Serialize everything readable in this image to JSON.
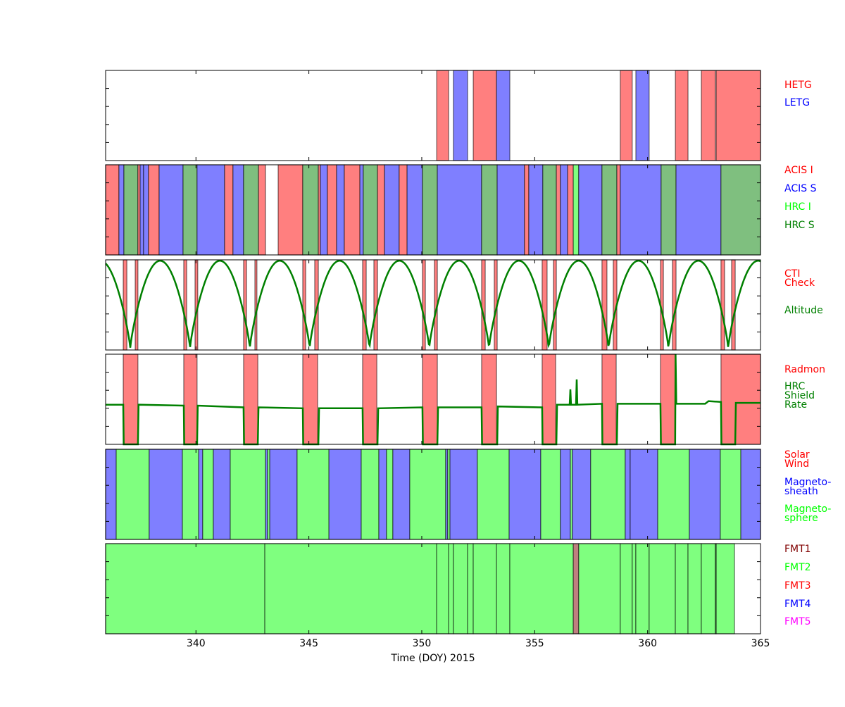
{
  "chart_data": {
    "type": "timeline-bands",
    "xlabel": "Time (DOY) 2015",
    "xlim": [
      336,
      365
    ],
    "xticks": [
      340,
      345,
      350,
      355,
      360,
      365
    ],
    "grid": false,
    "legend_placement": "right of each panel",
    "colors": {
      "HETG": "#ff7f7f",
      "LETG": "#7f7fff",
      "ACIS I": "#ff7f7f",
      "ACIS S": "#7f7fff",
      "HRC I": "#7fff7f",
      "HRC S": "#7fbf7f",
      "CTI Check": "#ff7f7f",
      "Radmon": "#ff7f7f",
      "Solar Wind": "#ff7f7f",
      "Magnetosheath": "#7f7fff",
      "Magnetosphere": "#7fff7f",
      "FMT1": "#bf7f7f",
      "FMT2": "#7fff7f",
      "FMT3": "#ff7f7f",
      "FMT4": "#7f7fff",
      "FMT5": "#ff7fff",
      "line": "#008000"
    },
    "panels": [
      {
        "name": "gratings",
        "legend": [
          {
            "text": "HETG",
            "color": "#ff0000"
          },
          {
            "text": "LETG",
            "color": "#0000ff"
          }
        ],
        "bands": [
          [
            350.66,
            351.19,
            "HETG"
          ],
          [
            351.4,
            352.03,
            "LETG"
          ],
          [
            352.28,
            353.31,
            "HETG"
          ],
          [
            353.31,
            353.9,
            "LETG"
          ],
          [
            358.79,
            359.32,
            "HETG"
          ],
          [
            359.48,
            360.07,
            "LETG"
          ],
          [
            361.23,
            361.79,
            "HETG"
          ],
          [
            362.38,
            363.0,
            "HETG"
          ],
          [
            363.04,
            365.0,
            "HETG"
          ]
        ]
      },
      {
        "name": "instruments",
        "legend": [
          {
            "text": "ACIS I",
            "color": "#ff0000"
          },
          {
            "text": "ACIS S",
            "color": "#0000ff"
          },
          {
            "text": "HRC I",
            "color": "#00ff00"
          },
          {
            "text": "HRC S",
            "color": "#008000"
          }
        ],
        "bands": [
          [
            336.0,
            336.59,
            "ACIS I"
          ],
          [
            336.59,
            336.81,
            "ACIS S"
          ],
          [
            336.81,
            337.43,
            "HRC S"
          ],
          [
            337.43,
            337.53,
            "ACIS I"
          ],
          [
            337.53,
            337.68,
            "ACIS S"
          ],
          [
            337.68,
            337.9,
            "ACIS S"
          ],
          [
            337.9,
            338.37,
            "ACIS I"
          ],
          [
            338.37,
            339.43,
            "ACIS S"
          ],
          [
            339.43,
            340.05,
            "HRC S"
          ],
          [
            340.05,
            341.27,
            "ACIS S"
          ],
          [
            341.27,
            341.64,
            "ACIS I"
          ],
          [
            341.64,
            342.11,
            "ACIS S"
          ],
          [
            342.11,
            342.77,
            "HRC S"
          ],
          [
            342.77,
            343.08,
            "ACIS I"
          ],
          [
            343.64,
            344.73,
            "ACIS I"
          ],
          [
            344.73,
            345.42,
            "HRC S"
          ],
          [
            345.42,
            345.51,
            "ACIS I"
          ],
          [
            345.51,
            345.82,
            "ACIS S"
          ],
          [
            345.82,
            346.23,
            "ACIS I"
          ],
          [
            346.23,
            346.57,
            "ACIS S"
          ],
          [
            346.57,
            347.26,
            "ACIS I"
          ],
          [
            347.26,
            347.41,
            "ACIS S"
          ],
          [
            347.41,
            348.04,
            "HRC S"
          ],
          [
            348.04,
            348.35,
            "ACIS I"
          ],
          [
            348.35,
            349.0,
            "ACIS S"
          ],
          [
            349.0,
            349.35,
            "ACIS I"
          ],
          [
            349.35,
            350.03,
            "ACIS S"
          ],
          [
            350.03,
            350.69,
            "HRC S"
          ],
          [
            350.69,
            352.65,
            "ACIS S"
          ],
          [
            352.65,
            353.34,
            "HRC S"
          ],
          [
            353.34,
            354.55,
            "ACIS S"
          ],
          [
            354.55,
            354.74,
            "ACIS I"
          ],
          [
            354.74,
            355.36,
            "ACIS S"
          ],
          [
            355.36,
            355.96,
            "HRC S"
          ],
          [
            355.96,
            356.14,
            "ACIS I"
          ],
          [
            356.14,
            356.46,
            "ACIS S"
          ],
          [
            356.46,
            356.71,
            "ACIS I"
          ],
          [
            356.71,
            356.95,
            "HRC I"
          ],
          [
            356.95,
            357.98,
            "ACIS S"
          ],
          [
            357.98,
            358.64,
            "HRC S"
          ],
          [
            358.64,
            358.79,
            "ACIS I"
          ],
          [
            358.79,
            360.6,
            "ACIS S"
          ],
          [
            360.6,
            361.26,
            "HRC S"
          ],
          [
            361.26,
            363.25,
            "ACIS S"
          ],
          [
            363.25,
            365.0,
            "HRC S"
          ]
        ]
      },
      {
        "name": "cti-altitude",
        "legend": [
          {
            "text": "CTI",
            "color": "#ff0000"
          },
          {
            "text": "Check",
            "color": "#ff0000"
          },
          {
            "text": "Altitude",
            "color": "#008000"
          }
        ],
        "bands": [
          [
            336.78,
            336.94,
            "CTI Check"
          ],
          [
            337.31,
            337.43,
            "CTI Check"
          ],
          [
            339.46,
            339.59,
            "CTI Check"
          ],
          [
            339.96,
            340.08,
            "CTI Check"
          ],
          [
            342.11,
            342.24,
            "CTI Check"
          ],
          [
            342.61,
            342.7,
            "CTI Check"
          ],
          [
            344.73,
            344.86,
            "CTI Check"
          ],
          [
            345.26,
            345.42,
            "CTI Check"
          ],
          [
            347.38,
            347.54,
            "CTI Check"
          ],
          [
            347.88,
            348.04,
            "CTI Check"
          ],
          [
            350.03,
            350.16,
            "CTI Check"
          ],
          [
            350.56,
            350.69,
            "CTI Check"
          ],
          [
            352.65,
            352.81,
            "CTI Check"
          ],
          [
            353.21,
            353.34,
            "CTI Check"
          ],
          [
            355.33,
            355.55,
            "CTI Check"
          ],
          [
            355.83,
            355.96,
            "CTI Check"
          ],
          [
            357.98,
            358.2,
            "CTI Check"
          ],
          [
            358.48,
            358.64,
            "CTI Check"
          ],
          [
            360.57,
            360.7,
            "CTI Check"
          ],
          [
            361.1,
            361.26,
            "CTI Check"
          ],
          [
            363.25,
            363.41,
            "CTI Check"
          ],
          [
            363.72,
            363.88,
            "CTI Check"
          ]
        ],
        "altitude_perigees": [
          337.09,
          339.74,
          342.39,
          345.04,
          347.66,
          350.31,
          352.93,
          355.61,
          358.26,
          360.91,
          363.57
        ]
      },
      {
        "name": "radmon-shield",
        "legend": [
          {
            "text": "Radmon",
            "color": "#ff0000"
          },
          {
            "text": "HRC",
            "color": "#008000"
          },
          {
            "text": "Shield",
            "color": "#008000"
          },
          {
            "text": "Rate",
            "color": "#008000"
          }
        ],
        "bands": [
          [
            336.78,
            337.43,
            "Radmon"
          ],
          [
            339.46,
            340.05,
            "Radmon"
          ],
          [
            342.11,
            342.74,
            "Radmon"
          ],
          [
            344.73,
            345.39,
            "Radmon"
          ],
          [
            347.38,
            348.01,
            "Radmon"
          ],
          [
            350.03,
            350.69,
            "Radmon"
          ],
          [
            352.65,
            353.31,
            "Radmon"
          ],
          [
            355.33,
            355.93,
            "Radmon"
          ],
          [
            357.98,
            358.61,
            "Radmon"
          ],
          [
            360.57,
            361.23,
            "Radmon"
          ],
          [
            363.25,
            365.0,
            "Radmon"
          ]
        ],
        "shield_rate_relative": [
          [
            336.0,
            0.44
          ],
          [
            336.78,
            0.44
          ],
          [
            336.8,
            0
          ],
          [
            337.43,
            0
          ],
          [
            337.46,
            0.44
          ],
          [
            339.46,
            0.43
          ],
          [
            339.48,
            0
          ],
          [
            340.05,
            0
          ],
          [
            340.08,
            0.43
          ],
          [
            342.11,
            0.41
          ],
          [
            342.13,
            0
          ],
          [
            342.74,
            0
          ],
          [
            342.77,
            0.41
          ],
          [
            344.73,
            0.4
          ],
          [
            344.75,
            0
          ],
          [
            345.42,
            0
          ],
          [
            345.45,
            0.4
          ],
          [
            347.38,
            0.4
          ],
          [
            347.4,
            0
          ],
          [
            348.04,
            0
          ],
          [
            348.07,
            0.4
          ],
          [
            350.03,
            0.41
          ],
          [
            350.05,
            0
          ],
          [
            350.69,
            0
          ],
          [
            350.72,
            0.41
          ],
          [
            352.65,
            0.41
          ],
          [
            352.67,
            0
          ],
          [
            353.34,
            0
          ],
          [
            353.37,
            0.42
          ],
          [
            355.33,
            0.41
          ],
          [
            355.35,
            0
          ],
          [
            355.96,
            0
          ],
          [
            355.99,
            0.44
          ],
          [
            356.55,
            0.44
          ],
          [
            356.58,
            0.61
          ],
          [
            356.61,
            0.44
          ],
          [
            356.83,
            0.44
          ],
          [
            356.86,
            0.72
          ],
          [
            356.89,
            0.44
          ],
          [
            357.98,
            0.45
          ],
          [
            358.0,
            0
          ],
          [
            358.64,
            0
          ],
          [
            358.67,
            0.45
          ],
          [
            360.57,
            0.45
          ],
          [
            360.59,
            0
          ],
          [
            361.22,
            0
          ],
          [
            361.24,
            1.0
          ],
          [
            361.27,
            0.45
          ],
          [
            362.55,
            0.45
          ],
          [
            362.7,
            0.48
          ],
          [
            363.25,
            0.47
          ],
          [
            363.27,
            0
          ],
          [
            363.88,
            0
          ],
          [
            363.91,
            0.46
          ],
          [
            365.0,
            0.46
          ]
        ]
      },
      {
        "name": "regions",
        "legend": [
          {
            "text": "Solar",
            "color": "#ff0000"
          },
          {
            "text": "Wind",
            "color": "#ff0000"
          },
          {
            "text": "Magneto-",
            "color": "#0000ff"
          },
          {
            "text": "sheath",
            "color": "#0000ff"
          },
          {
            "text": "Magneto-",
            "color": "#00ff00"
          },
          {
            "text": "sphere",
            "color": "#00ff00"
          }
        ],
        "bands": [
          [
            336.0,
            336.47,
            "Magnetosheath"
          ],
          [
            336.47,
            337.93,
            "Magnetosphere"
          ],
          [
            337.93,
            339.4,
            "Magnetosheath"
          ],
          [
            339.4,
            340.12,
            "Magnetosphere"
          ],
          [
            340.12,
            340.3,
            "Magnetosheath"
          ],
          [
            340.3,
            340.77,
            "Magnetosphere"
          ],
          [
            340.77,
            341.52,
            "Magnetosheath"
          ],
          [
            341.52,
            343.08,
            "Magnetosphere"
          ],
          [
            343.08,
            343.17,
            "Magnetosheath"
          ],
          [
            343.17,
            343.27,
            "Magnetosphere"
          ],
          [
            343.27,
            344.48,
            "Magnetosheath"
          ],
          [
            344.48,
            345.89,
            "Magnetosphere"
          ],
          [
            345.89,
            347.32,
            "Magnetosheath"
          ],
          [
            347.32,
            348.1,
            "Magnetosphere"
          ],
          [
            348.1,
            348.44,
            "Magnetosheath"
          ],
          [
            348.44,
            348.72,
            "Magnetosphere"
          ],
          [
            348.72,
            349.47,
            "Magnetosheath"
          ],
          [
            349.47,
            351.06,
            "Magnetosphere"
          ],
          [
            351.06,
            351.15,
            "Magnetosheath"
          ],
          [
            351.15,
            351.25,
            "Magnetosphere"
          ],
          [
            351.25,
            352.46,
            "Magnetosheath"
          ],
          [
            352.46,
            353.87,
            "Magnetosphere"
          ],
          [
            353.87,
            355.27,
            "Magnetosheath"
          ],
          [
            355.27,
            356.14,
            "Magnetosphere"
          ],
          [
            356.14,
            356.58,
            "Magnetosheath"
          ],
          [
            356.58,
            356.67,
            "Magnetosphere"
          ],
          [
            356.67,
            357.48,
            "Magnetosheath"
          ],
          [
            357.48,
            359.01,
            "Magnetosphere"
          ],
          [
            359.01,
            359.23,
            "Magnetosheath"
          ],
          [
            359.23,
            360.45,
            "Magnetosheath"
          ],
          [
            360.45,
            361.85,
            "Magnetosphere"
          ],
          [
            361.85,
            363.22,
            "Magnetosheath"
          ],
          [
            363.22,
            364.13,
            "Magnetosphere"
          ],
          [
            364.13,
            365.0,
            "Magnetosheath"
          ]
        ]
      },
      {
        "name": "formats",
        "legend": [
          {
            "text": "FMT1",
            "color": "#800000"
          },
          {
            "text": "FMT2",
            "color": "#00ff00"
          },
          {
            "text": "FMT3",
            "color": "#ff0000"
          },
          {
            "text": "FMT4",
            "color": "#0000ff"
          },
          {
            "text": "FMT5",
            "color": "#ff00ff"
          }
        ],
        "bands": [
          [
            336.0,
            343.05,
            "FMT2"
          ],
          [
            343.05,
            350.66,
            "FMT2"
          ],
          [
            350.66,
            351.19,
            "FMT2"
          ],
          [
            351.19,
            351.4,
            "FMT2"
          ],
          [
            351.4,
            352.03,
            "FMT2"
          ],
          [
            352.03,
            352.28,
            "FMT2"
          ],
          [
            352.28,
            353.31,
            "FMT2"
          ],
          [
            353.31,
            353.9,
            "FMT2"
          ],
          [
            353.9,
            356.71,
            "FMT2"
          ],
          [
            356.71,
            356.95,
            "FMT1"
          ],
          [
            356.95,
            358.79,
            "FMT2"
          ],
          [
            358.79,
            359.32,
            "FMT2"
          ],
          [
            359.32,
            359.48,
            "FMT2"
          ],
          [
            359.48,
            360.07,
            "FMT2"
          ],
          [
            360.07,
            361.23,
            "FMT2"
          ],
          [
            361.23,
            361.79,
            "FMT2"
          ],
          [
            361.79,
            362.38,
            "FMT2"
          ],
          [
            362.38,
            363.0,
            "FMT2"
          ],
          [
            363.0,
            363.04,
            "FMT2"
          ],
          [
            363.04,
            363.85,
            "FMT2"
          ]
        ]
      }
    ]
  }
}
